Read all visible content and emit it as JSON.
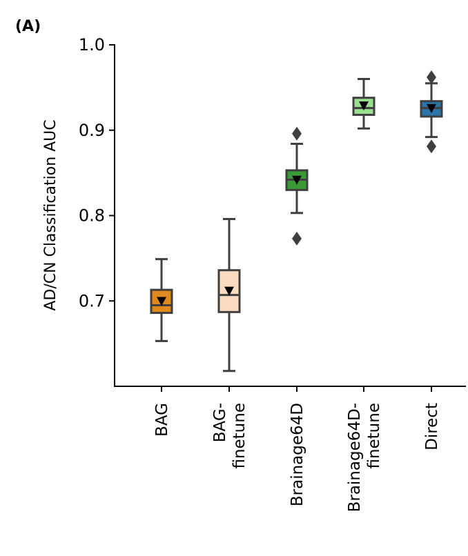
{
  "panel_label": "(A)",
  "chart_data": {
    "type": "box",
    "title": "",
    "xlabel": "",
    "ylabel": "AD/CN Classification AUC",
    "ylim": [
      0.6,
      1.0
    ],
    "yticks": [
      0.7,
      0.8,
      0.9,
      1.0
    ],
    "ytick_labels": [
      "0.7",
      "0.8",
      "0.9",
      "1.0"
    ],
    "grid": false,
    "categories": [
      {
        "label_lines": [
          "BAG"
        ],
        "color": "#e08a1e",
        "whisker_low": 0.653,
        "q1": 0.686,
        "median": 0.695,
        "q3": 0.713,
        "whisker_high": 0.749,
        "mean": 0.699,
        "outliers": []
      },
      {
        "label_lines": [
          "BAG-",
          "finetune"
        ],
        "color": "#fbdcc0",
        "whisker_low": 0.618,
        "q1": 0.687,
        "median": 0.707,
        "q3": 0.736,
        "whisker_high": 0.796,
        "mean": 0.711,
        "outliers": []
      },
      {
        "label_lines": [
          "Brainage64D"
        ],
        "color": "#3a9a35",
        "whisker_low": 0.803,
        "q1": 0.83,
        "median": 0.842,
        "q3": 0.853,
        "whisker_high": 0.884,
        "mean": 0.841,
        "outliers": [
          0.896,
          0.773
        ]
      },
      {
        "label_lines": [
          "Brainage64D-",
          "finetune"
        ],
        "color": "#9adf90",
        "whisker_low": 0.902,
        "q1": 0.918,
        "median": 0.926,
        "q3": 0.938,
        "whisker_high": 0.96,
        "mean": 0.928,
        "outliers": []
      },
      {
        "label_lines": [
          "Direct"
        ],
        "color": "#2a74a8",
        "whisker_low": 0.892,
        "q1": 0.916,
        "median": 0.926,
        "q3": 0.934,
        "whisker_high": 0.955,
        "mean": 0.925,
        "outliers": [
          0.962,
          0.881
        ]
      }
    ]
  }
}
